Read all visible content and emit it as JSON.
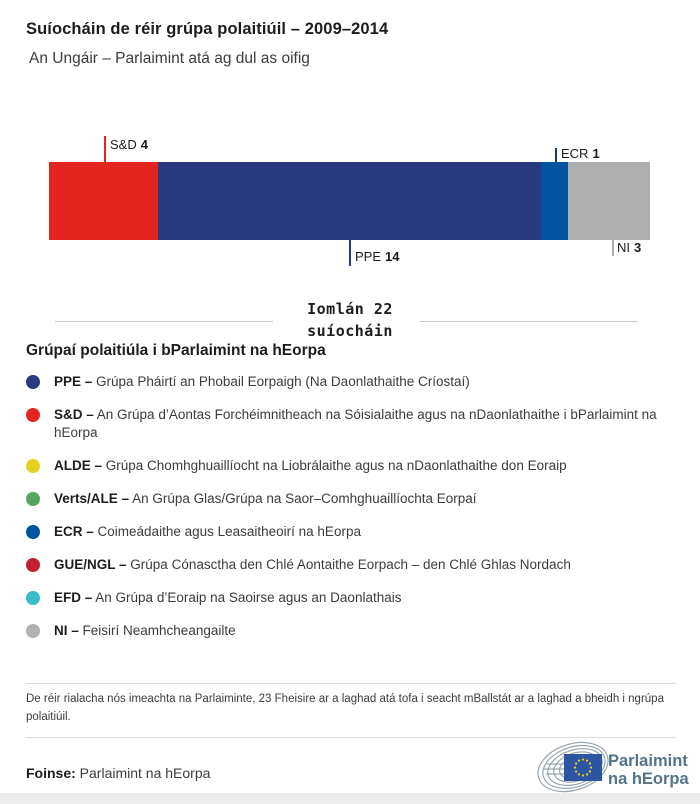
{
  "page": {
    "title": "Suíocháin de réir grúpa polaitiúil – 2009–2014",
    "subtitle": "An Ungáir – Parlaimint atá ag dul as oifig"
  },
  "chart_data": {
    "type": "bar",
    "title": "Suíocháin de réir grúpa polaitiúil – 2009–2014",
    "subtitle": "An Ungáir – Parlaimint atá ag dul as oifig",
    "orientation": "horizontal-stacked",
    "total_seats": 22,
    "groups": [
      "S&D",
      "PPE",
      "ECR",
      "NI"
    ],
    "values": [
      4,
      14,
      1,
      3
    ],
    "segments": [
      {
        "group": "S&D",
        "seats": "4",
        "color": "#e2261f",
        "line_color": "#e2261f",
        "label_position": "above"
      },
      {
        "group": "PPE",
        "seats": "14",
        "color": "#2a3a7e",
        "line_color": "#2a3a7e",
        "label_position": "below"
      },
      {
        "group": "ECR",
        "seats": "1",
        "color": "#0353a2",
        "line_color": "#1d3a6b",
        "label_position": "above"
      },
      {
        "group": "NI",
        "seats": "3",
        "color": "#aeaeae",
        "line_color": "#aeaeae",
        "label_position": "below"
      }
    ]
  },
  "total": {
    "line1": "Iomlán 22",
    "line2": "suíocháin"
  },
  "legend": {
    "heading": "Grúpaí polaitiúla i bParlaimint na hEorpa",
    "items": [
      {
        "abbr": "PPE –",
        "description": "Grúpa Pháirtí an Phobail Eorpaigh (Na Daonlathaithe Críostaí)",
        "color": "#2a3a7e"
      },
      {
        "abbr": "S&D –",
        "description": "An Grúpa d’Aontas Forchéimnitheach na Sóisialaithe agus na nDaonlathaithe i bParlaimint na hEorpa",
        "color": "#e2261f"
      },
      {
        "abbr": "ALDE –",
        "description": "Grúpa Chomhghuaillíocht na Liobrálaithe agus na nDaonlathaithe don Eoraip",
        "color": "#e3d222"
      },
      {
        "abbr": "Verts/ALE –",
        "description": "An Grúpa Glas/Grúpa na Saor–Comhghuaillíochta Eorpaí",
        "color": "#58a65e"
      },
      {
        "abbr": "ECR –",
        "description": "Coimeádaithe agus Leasaitheoirí na hEorpa",
        "color": "#0353a2"
      },
      {
        "abbr": "GUE/NGL –",
        "description": "Grúpa Cónasctha den Chlé Aontaithe Eorpach – den Chlé Ghlas Nordach",
        "color": "#c21f30"
      },
      {
        "abbr": "EFD –",
        "description": "An Grúpa d’Eoraip na Saoirse agus an Daonlathais",
        "color": "#38bec6"
      },
      {
        "abbr": "NI –",
        "description": "Feisirí Neamhcheangailte",
        "color": "#b1b1b1"
      }
    ]
  },
  "footer": {
    "note": "De réir rialacha nós imeachta na Parlaiminte, 23 Fheisire ar a laghad atá tofa i seacht mBallstát ar a laghad a bheidh i ngrúpa polaitiúil.",
    "source_label": "Foinse:",
    "source_value": " Parlaimint na hEorpa",
    "logo_line1": "Parlaimint",
    "logo_line2": "na hEorpa"
  }
}
